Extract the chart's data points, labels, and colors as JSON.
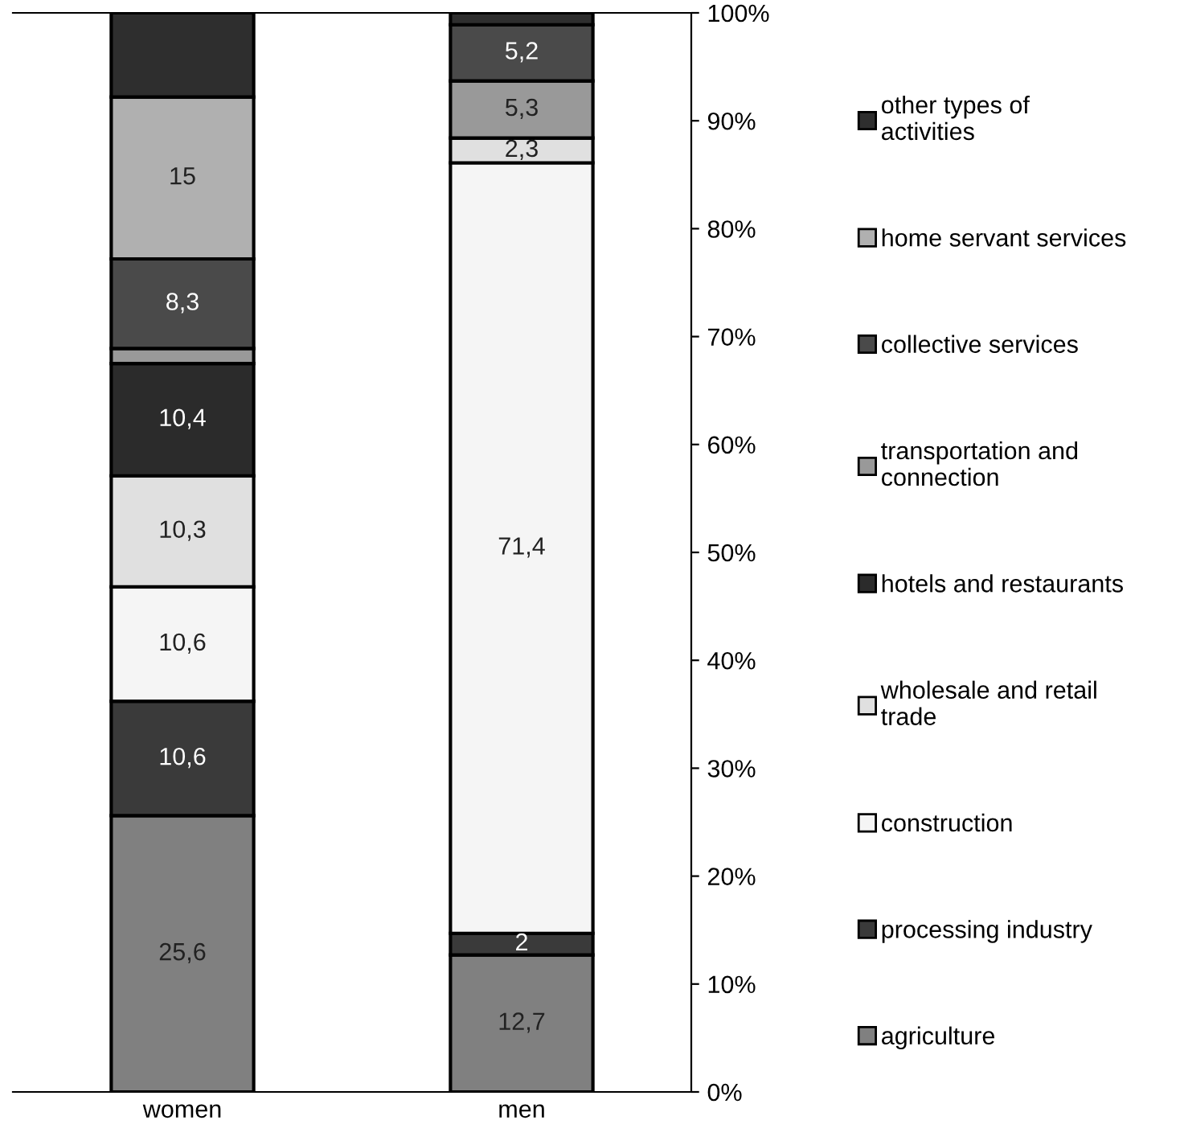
{
  "chart_data": {
    "type": "bar",
    "stacked": true,
    "categories": [
      "women",
      "men"
    ],
    "series": [
      {
        "name": "agriculture",
        "color": "#808080",
        "values": [
          25.6,
          12.7
        ],
        "value_labels": [
          "25,6",
          "12,7"
        ]
      },
      {
        "name": "processing industry",
        "color": "#3a3a3a",
        "values": [
          10.6,
          2
        ],
        "value_labels": [
          "10,6",
          "2"
        ]
      },
      {
        "name": "construction",
        "color": "#f5f5f5",
        "values": [
          10.6,
          71.4
        ],
        "value_labels": [
          "10,6",
          "71,4"
        ]
      },
      {
        "name": "wholesale and retail\ntrade",
        "color": "#e0e0e0",
        "values": [
          10.3,
          2.3
        ],
        "value_labels": [
          "10,3",
          "2,3"
        ]
      },
      {
        "name": "hotels and restaurants",
        "color": "#2b2b2b",
        "values": [
          10.4,
          0
        ],
        "value_labels": [
          "10,4",
          null
        ]
      },
      {
        "name": "transportation and\nconnection",
        "color": "#999999",
        "values": [
          1.4,
          5.3
        ],
        "value_labels": [
          null,
          "5,3"
        ]
      },
      {
        "name": "collective services",
        "color": "#4a4a4a",
        "values": [
          8.3,
          5.2
        ],
        "value_labels": [
          "8,3",
          "5,2"
        ]
      },
      {
        "name": "home servant services",
        "color": "#b0b0b0",
        "values": [
          15,
          0
        ],
        "value_labels": [
          "15",
          null
        ]
      },
      {
        "name": "other types of\nactivities",
        "color": "#2e2e2e",
        "values": [
          7.8,
          1.1
        ],
        "value_labels": [
          null,
          null
        ]
      }
    ],
    "ylim": [
      0,
      100
    ],
    "yticks": [
      {
        "value": 0,
        "label": "0%"
      },
      {
        "value": 10,
        "label": "10%"
      },
      {
        "value": 20,
        "label": "20%"
      },
      {
        "value": 30,
        "label": "30%"
      },
      {
        "value": 40,
        "label": "40%"
      },
      {
        "value": 50,
        "label": "50%"
      },
      {
        "value": 60,
        "label": "60%"
      },
      {
        "value": 70,
        "label": "70%"
      },
      {
        "value": 80,
        "label": "80%"
      },
      {
        "value": 90,
        "label": "90%"
      },
      {
        "value": 100,
        "label": "100%"
      }
    ],
    "grid": false,
    "legend": "right"
  }
}
